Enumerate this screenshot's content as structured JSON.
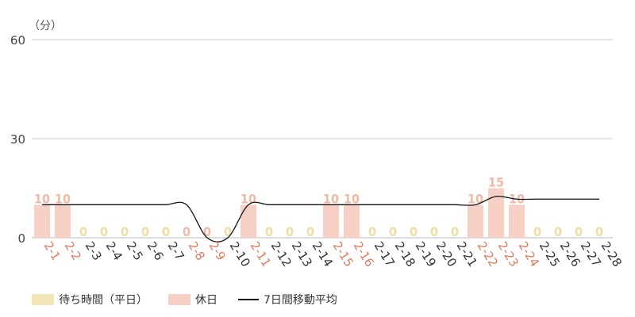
{
  "chart_data": {
    "type": "bar",
    "unit_label": "（分）",
    "y_ticks": [
      0,
      30,
      60
    ],
    "ylim": [
      0,
      60
    ],
    "grid": true,
    "legend_placement": "bottom-left",
    "categories": [
      "2-1",
      "2-2",
      "2-3",
      "2-4",
      "2-5",
      "2-6",
      "2-7",
      "2-8",
      "2-9",
      "2-10",
      "2-11",
      "2-12",
      "2-13",
      "2-14",
      "2-15",
      "2-16",
      "2-17",
      "2-18",
      "2-19",
      "2-20",
      "2-21",
      "2-22",
      "2-23",
      "2-24",
      "2-25",
      "2-26",
      "2-27",
      "2-28"
    ],
    "holiday_categories": [
      "2-1",
      "2-2",
      "2-8",
      "2-9",
      "2-11",
      "2-15",
      "2-16",
      "2-22",
      "2-23",
      "2-24"
    ],
    "series": [
      {
        "name": "待ち時間（平日）",
        "type": "bar",
        "values": [
          null,
          null,
          0,
          0,
          0,
          0,
          0,
          null,
          null,
          0,
          null,
          0,
          0,
          0,
          null,
          null,
          0,
          0,
          0,
          0,
          0,
          null,
          null,
          null,
          0,
          0,
          0,
          0
        ]
      },
      {
        "name": "休日",
        "type": "bar",
        "values": [
          10,
          10,
          null,
          null,
          null,
          null,
          null,
          0,
          0,
          null,
          10,
          null,
          null,
          null,
          10,
          10,
          null,
          null,
          null,
          null,
          null,
          10,
          15,
          10,
          null,
          null,
          null,
          null
        ]
      },
      {
        "name": "7日間移動平均",
        "type": "line",
        "values": [
          10,
          10,
          10,
          10,
          10,
          10,
          10,
          10,
          0,
          0,
          10,
          10,
          10,
          10,
          10,
          10,
          10,
          10,
          10,
          10,
          10,
          10,
          12.5,
          11.7,
          11.7,
          11.7,
          11.7,
          11.7
        ]
      }
    ]
  },
  "colors": {
    "weekday_bar": "#F3E5B5",
    "weekday_label": "#EFDCA0",
    "holiday_bar": "#F6D0C4",
    "holiday_label": "#F0B9A4",
    "holiday_tick": "#E07A5F",
    "weekday_tick": "#333333",
    "line": "#111111",
    "grid": "#CCCCCC"
  }
}
